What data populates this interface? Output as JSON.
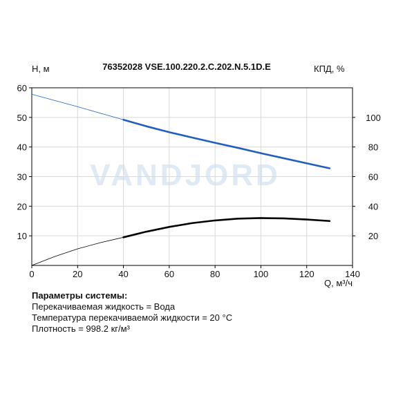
{
  "chart_data": {
    "type": "line",
    "title": "76352028 VSE.100.220.2.C.202.N.5.1D.E",
    "xlabel": "Q, м³/ч",
    "ylabel_left": "H, м",
    "ylabel_right": "КПД, %",
    "xlim": [
      0,
      140
    ],
    "ylim_left": [
      0,
      60
    ],
    "ylim_right": [
      0,
      120
    ],
    "x_ticks": [
      0,
      20,
      40,
      60,
      80,
      100,
      120,
      140
    ],
    "y_ticks_left": [
      10,
      20,
      30,
      40,
      50,
      60
    ],
    "y_ticks_right": [
      20,
      40,
      60,
      80,
      100
    ],
    "grid": true,
    "watermark": "VANDJORD",
    "series": [
      {
        "axis": "left",
        "color": "#1f5fbf",
        "thin_x": [
          0,
          10,
          20,
          30,
          40
        ],
        "thin_y": [
          57.8,
          55.7,
          53.6,
          51.4,
          49.2
        ],
        "x": [
          40,
          50,
          60,
          70,
          80,
          90,
          100,
          110,
          120,
          130
        ],
        "y": [
          49.2,
          47.0,
          45.0,
          43.2,
          41.4,
          39.7,
          37.9,
          36.2,
          34.5,
          32.8
        ]
      },
      {
        "axis": "left",
        "color": "#000000",
        "thin_x": [
          0,
          10,
          20,
          30,
          40
        ],
        "thin_y": [
          0,
          3.0,
          5.6,
          7.7,
          9.5
        ],
        "x": [
          40,
          50,
          60,
          70,
          80,
          90,
          100,
          110,
          120,
          130
        ],
        "y": [
          9.5,
          11.4,
          13.0,
          14.3,
          15.2,
          15.8,
          16.0,
          15.9,
          15.5,
          15.0
        ]
      }
    ]
  },
  "info": {
    "title": "Параметры системы:",
    "lines": [
      "Перекачиваемая жидкость = Вода",
      "Температура перекачиваемой жидкости = 20 °C",
      "Плотность = 998.2 кг/м³"
    ]
  }
}
